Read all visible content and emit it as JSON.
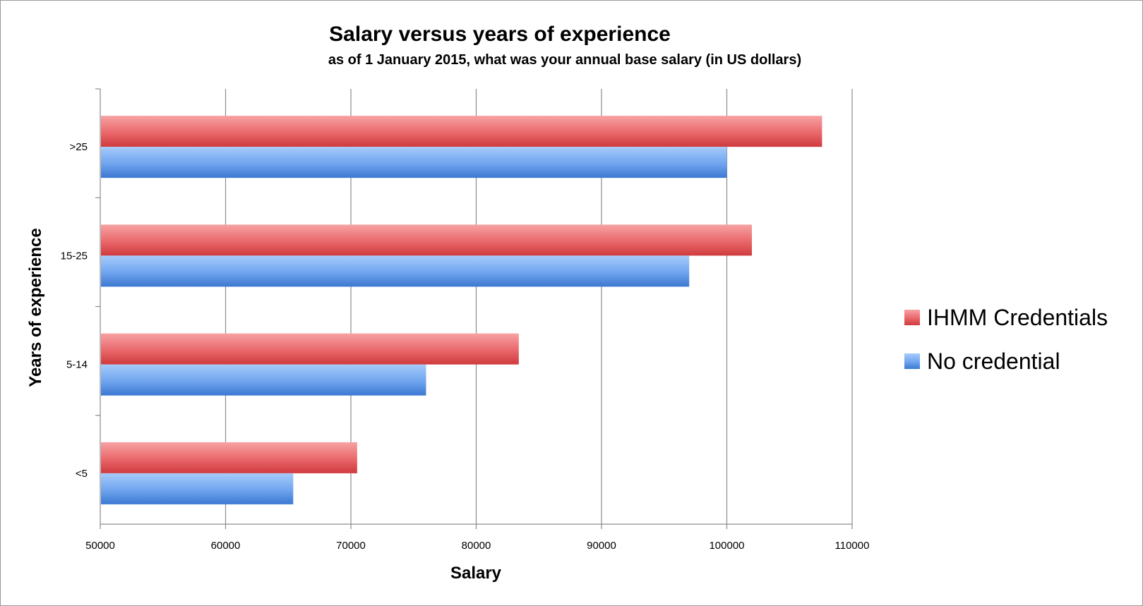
{
  "chart_data": {
    "type": "bar",
    "orientation": "horizontal",
    "title": "Salary versus years of experience",
    "subtitle": "as of 1 January 2015, what was your annual base salary (in US dollars)",
    "xlabel": "Salary",
    "ylabel": "Years of experience",
    "categories": [
      ">25",
      "15-25",
      "5-14",
      "<5"
    ],
    "xlim": [
      50000,
      110000
    ],
    "xticks": [
      50000,
      60000,
      70000,
      80000,
      90000,
      100000,
      110000
    ],
    "xtick_labels": [
      "50000",
      "60000",
      "70000",
      "80000",
      "90000",
      "100000",
      "110000"
    ],
    "grid": true,
    "legend_position": "right",
    "series": [
      {
        "name": "IHMM Credentials",
        "color": "#e0484b",
        "values": [
          107600,
          102000,
          83400,
          70500
        ]
      },
      {
        "name": "No credential",
        "color": "#4a88df",
        "values": [
          100000,
          97000,
          76000,
          65400
        ]
      }
    ]
  }
}
